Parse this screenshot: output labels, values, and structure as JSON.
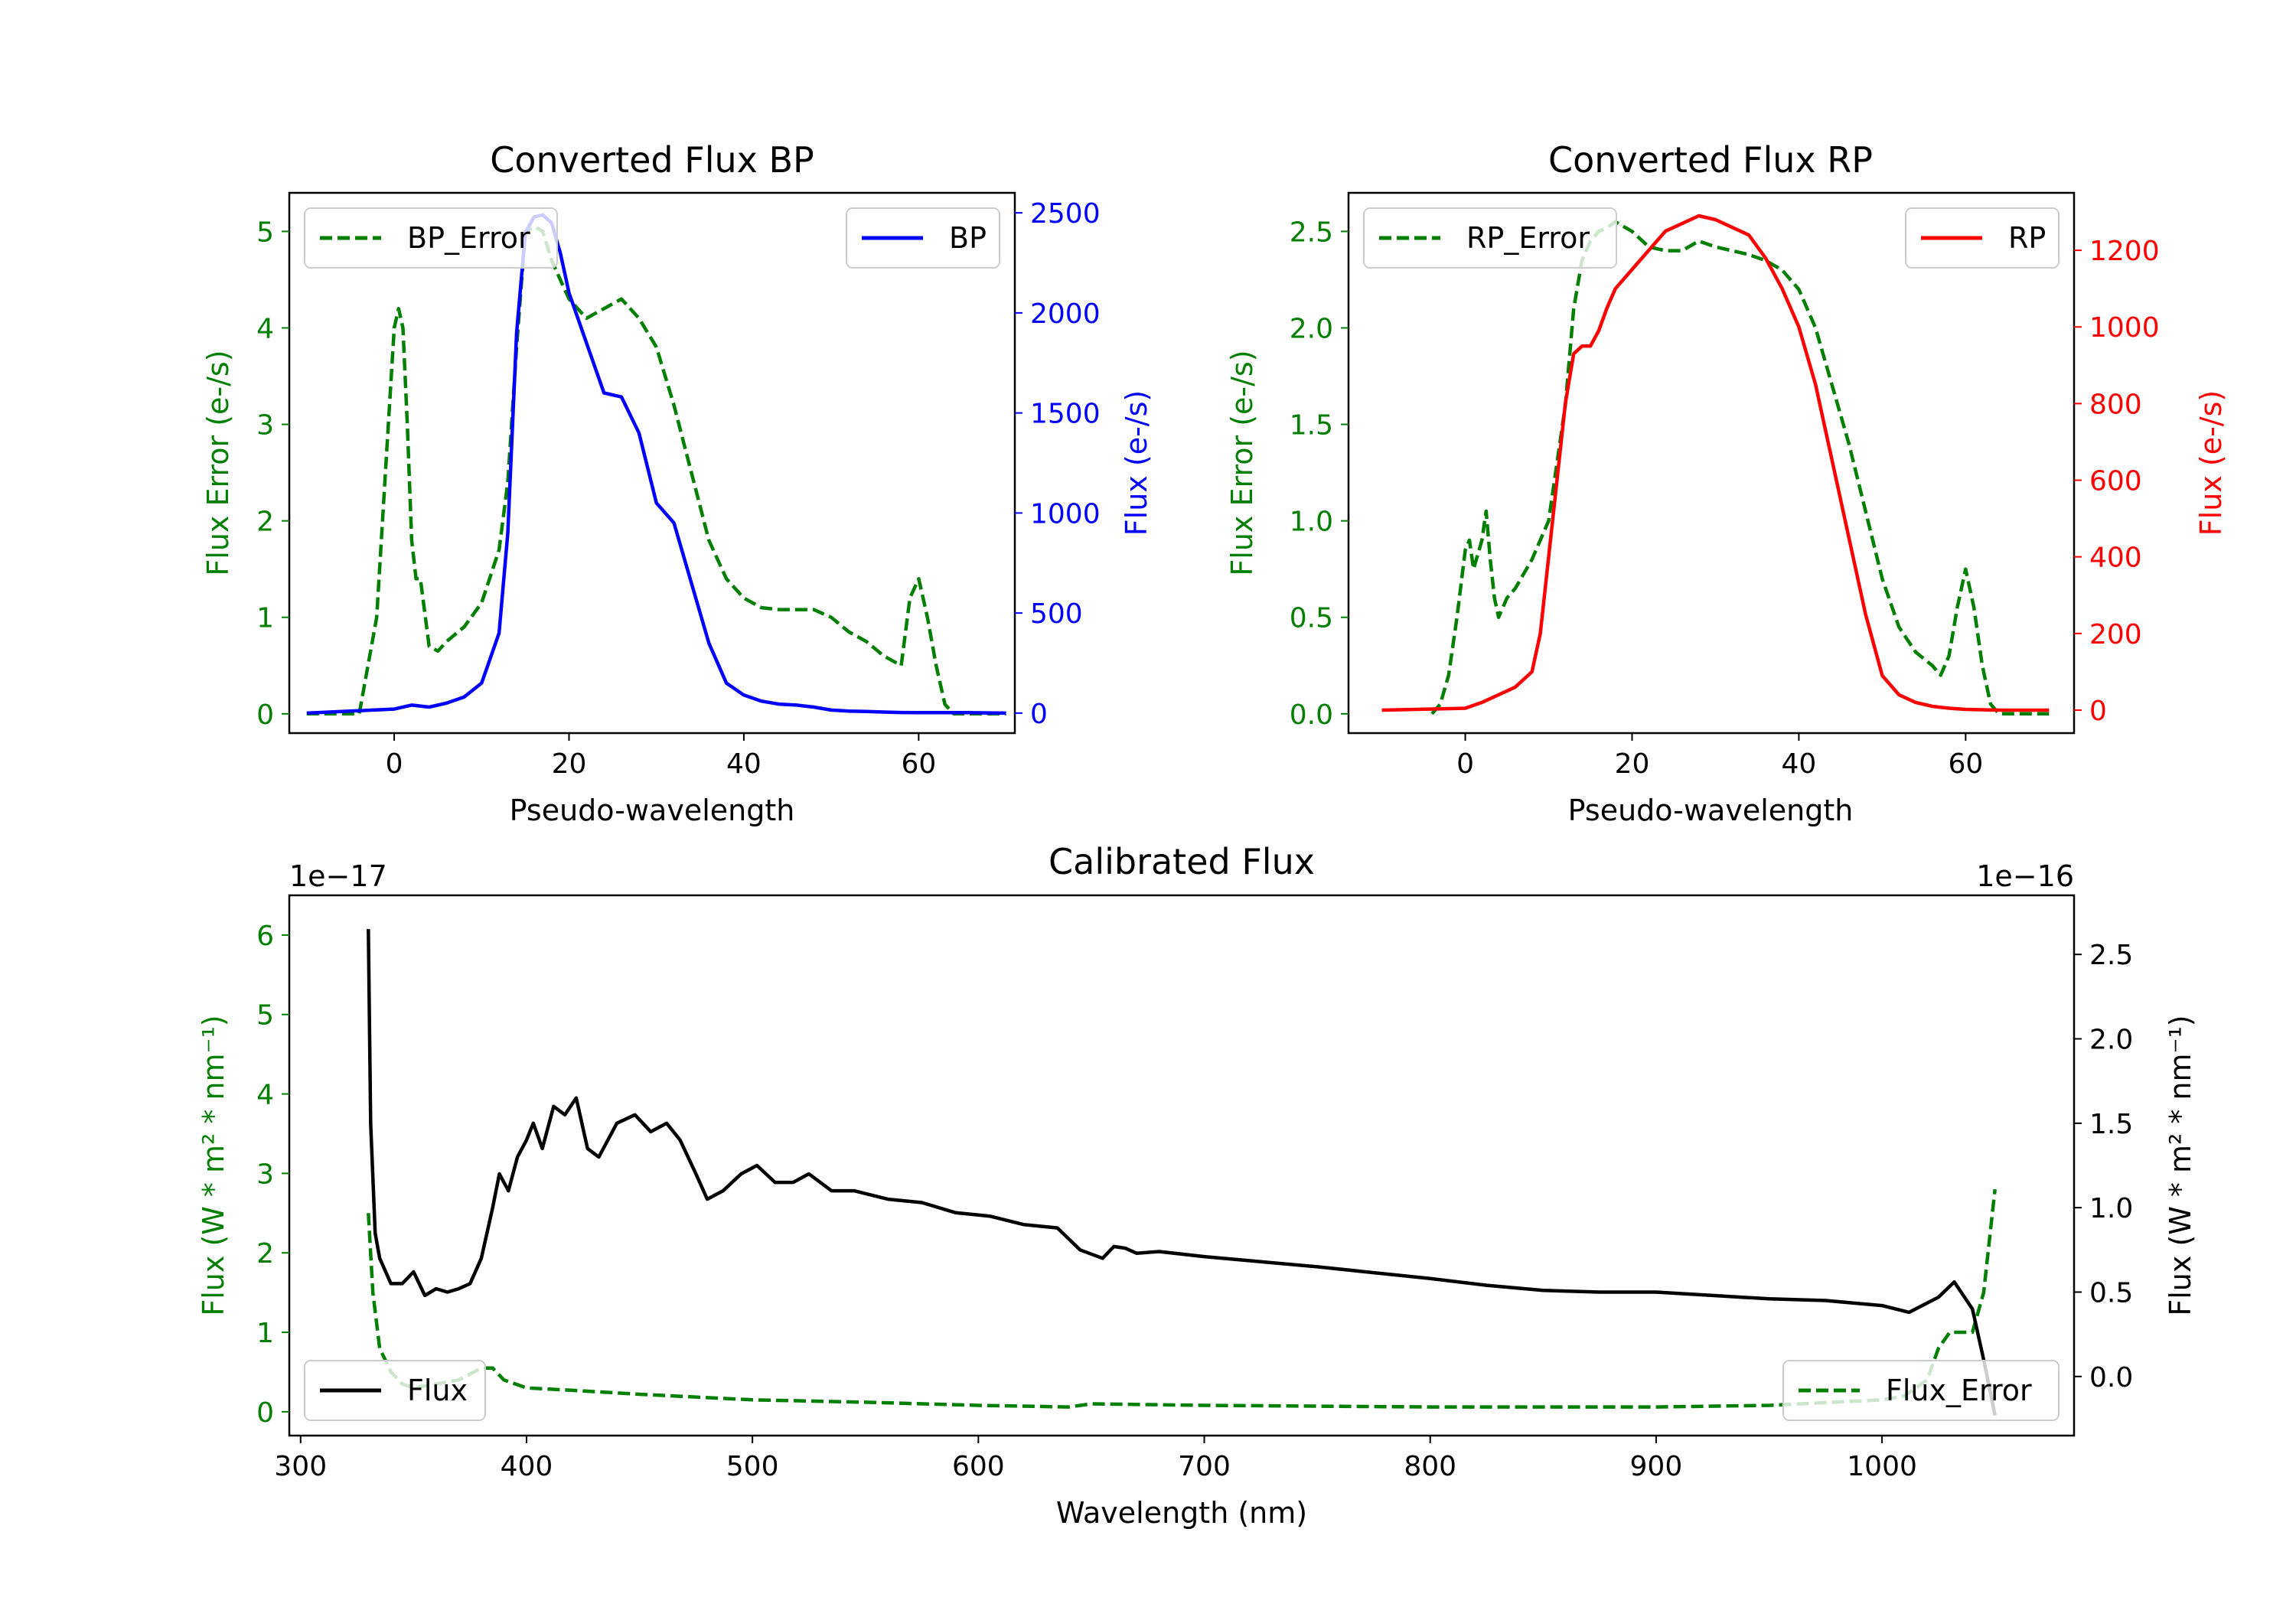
{
  "chart_data": [
    {
      "type": "line",
      "title": "Converted Flux BP",
      "xlabel": "Pseudo-wavelength",
      "ylabel_left": "Flux Error (e-/s)",
      "ylabel_right": "Flux (e-/s)",
      "xlim": [
        -12,
        71
      ],
      "xticks": [
        "0",
        "20",
        "40",
        "60"
      ],
      "xtick_values": [
        0,
        20,
        40,
        60
      ],
      "ylim_left": [
        -0.2,
        5.4
      ],
      "yticks_left": [
        "0",
        "1",
        "2",
        "3",
        "4",
        "5"
      ],
      "ytick_values_left": [
        0,
        1,
        2,
        3,
        4,
        5
      ],
      "ylim_right": [
        -100,
        2600
      ],
      "yticks_right": [
        "0",
        "500",
        "1000",
        "1500",
        "2000",
        "2500"
      ],
      "ytick_values_right": [
        0,
        500,
        1000,
        1500,
        2000,
        2500
      ],
      "legend_left": "BP_Error",
      "legend_right": "BP",
      "legend_placement": "top-left / top-right",
      "colors": {
        "error": "#007f00",
        "flux": "#0000ff",
        "left_axis": "#007f00",
        "right_axis": "#0000ff"
      },
      "series": [
        {
          "name": "BP_Error",
          "axis": "left",
          "style": "dashed",
          "color": "#007f00",
          "x": [
            -10,
            -4,
            -2,
            -1,
            0,
            0.5,
            1,
            1.5,
            2,
            2.5,
            3,
            4,
            5,
            6,
            8,
            10,
            12,
            13,
            14,
            15,
            16,
            17,
            18,
            20,
            22,
            24,
            26,
            28,
            30,
            32,
            34,
            36,
            38,
            40,
            42,
            44,
            46,
            48,
            50,
            52,
            54,
            56,
            58,
            59,
            60,
            61,
            62,
            63,
            64,
            70
          ],
          "values": [
            0,
            0,
            1.0,
            2.5,
            4.0,
            4.2,
            4.0,
            3.0,
            1.8,
            1.4,
            1.4,
            0.7,
            0.65,
            0.75,
            0.9,
            1.15,
            1.7,
            2.4,
            3.8,
            5.0,
            5.05,
            5.0,
            4.7,
            4.3,
            4.1,
            4.2,
            4.3,
            4.1,
            3.8,
            3.2,
            2.5,
            1.8,
            1.4,
            1.2,
            1.1,
            1.08,
            1.08,
            1.08,
            1.0,
            0.85,
            0.75,
            0.6,
            0.5,
            1.2,
            1.4,
            1.0,
            0.5,
            0.1,
            0,
            0
          ]
        },
        {
          "name": "BP",
          "axis": "right",
          "style": "solid",
          "color": "#0000ff",
          "x": [
            -10,
            0,
            2,
            4,
            6,
            8,
            10,
            12,
            13,
            14,
            15,
            16,
            17,
            18,
            19,
            20,
            22,
            24,
            26,
            28,
            30,
            32,
            34,
            36,
            38,
            40,
            42,
            44,
            46,
            48,
            50,
            52,
            54,
            56,
            58,
            60,
            62,
            64,
            66,
            70
          ],
          "values": [
            0,
            20,
            40,
            30,
            50,
            80,
            150,
            400,
            900,
            1900,
            2400,
            2480,
            2490,
            2450,
            2300,
            2100,
            1850,
            1600,
            1580,
            1400,
            1050,
            950,
            650,
            350,
            150,
            90,
            60,
            45,
            40,
            30,
            15,
            10,
            8,
            5,
            3,
            2,
            2,
            2,
            2,
            0
          ]
        }
      ]
    },
    {
      "type": "line",
      "title": "Converted Flux RP",
      "xlabel": "Pseudo-wavelength",
      "ylabel_left": "Flux Error (e-/s)",
      "ylabel_right": "Flux (e-/s)",
      "xlim": [
        -14,
        73
      ],
      "xticks": [
        "0",
        "20",
        "40",
        "60"
      ],
      "xtick_values": [
        0,
        20,
        40,
        60
      ],
      "ylim_left": [
        -0.1,
        2.7
      ],
      "yticks_left": [
        "0.0",
        "0.5",
        "1.0",
        "1.5",
        "2.0",
        "2.5"
      ],
      "ytick_values_left": [
        0,
        0.5,
        1.0,
        1.5,
        2.0,
        2.5
      ],
      "ylim_right": [
        -60,
        1350
      ],
      "yticks_right": [
        "0",
        "200",
        "400",
        "600",
        "800",
        "1000",
        "1200"
      ],
      "ytick_values_right": [
        0,
        200,
        400,
        600,
        800,
        1000,
        1200
      ],
      "legend_left": "RP_Error",
      "legend_right": "RP",
      "legend_placement": "top-left / top-right",
      "colors": {
        "error": "#007f00",
        "flux": "#ff0000",
        "left_axis": "#007f00",
        "right_axis": "#ff0000"
      },
      "series": [
        {
          "name": "RP_Error",
          "axis": "left",
          "style": "dashed",
          "color": "#007f00",
          "x": [
            -4,
            -3,
            -2,
            -1,
            0,
            0.5,
            1,
            2,
            2.5,
            3,
            3.5,
            4,
            5,
            6,
            8,
            10,
            12,
            13,
            14,
            15,
            16,
            17,
            18,
            20,
            22,
            24,
            26,
            28,
            30,
            32,
            34,
            36,
            38,
            40,
            42,
            44,
            46,
            48,
            50,
            52,
            54,
            56,
            57,
            58,
            59,
            60,
            61,
            62,
            63,
            64,
            70
          ],
          "values": [
            0,
            0.05,
            0.2,
            0.5,
            0.85,
            0.9,
            0.75,
            0.9,
            1.05,
            0.8,
            0.6,
            0.5,
            0.6,
            0.65,
            0.8,
            1.0,
            1.6,
            2.1,
            2.35,
            2.45,
            2.5,
            2.52,
            2.55,
            2.5,
            2.42,
            2.4,
            2.4,
            2.45,
            2.42,
            2.4,
            2.38,
            2.35,
            2.3,
            2.2,
            2.0,
            1.7,
            1.4,
            1.05,
            0.7,
            0.45,
            0.32,
            0.25,
            0.2,
            0.3,
            0.55,
            0.75,
            0.55,
            0.25,
            0.05,
            0,
            0
          ]
        },
        {
          "name": "RP",
          "axis": "right",
          "style": "solid",
          "color": "#ff0000",
          "x": [
            -10,
            0,
            2,
            4,
            6,
            8,
            9,
            10,
            11,
            12,
            13,
            14,
            15,
            16,
            17,
            18,
            20,
            22,
            24,
            26,
            28,
            30,
            32,
            34,
            36,
            38,
            40,
            42,
            44,
            46,
            48,
            50,
            52,
            54,
            56,
            58,
            60,
            64,
            70
          ],
          "values": [
            0,
            5,
            20,
            40,
            60,
            100,
            200,
            400,
            600,
            800,
            930,
            950,
            950,
            990,
            1050,
            1100,
            1150,
            1200,
            1250,
            1270,
            1290,
            1280,
            1260,
            1240,
            1180,
            1100,
            1000,
            850,
            650,
            450,
            250,
            90,
            40,
            20,
            10,
            5,
            2,
            0,
            0
          ]
        }
      ]
    },
    {
      "type": "line",
      "title": "Calibrated Flux",
      "xlabel": "Wavelength (nm)",
      "ylabel_left": "Flux (W * m² * nm⁻¹)",
      "ylabel_right": "Flux (W * m² * nm⁻¹)",
      "left_scale_label": "1e−17",
      "right_scale_label": "1e−16",
      "xlim": [
        295,
        1085
      ],
      "xticks": [
        "300",
        "400",
        "500",
        "600",
        "700",
        "800",
        "900",
        "1000"
      ],
      "xtick_values": [
        300,
        400,
        500,
        600,
        700,
        800,
        900,
        1000
      ],
      "ylim_left": [
        -0.3,
        6.5
      ],
      "yticks_left": [
        "0",
        "1",
        "2",
        "3",
        "4",
        "5",
        "6"
      ],
      "ytick_values_left": [
        0,
        1,
        2,
        3,
        4,
        5,
        6
      ],
      "ylim_right": [
        -0.35,
        2.85
      ],
      "yticks_right": [
        "0.0",
        "0.5",
        "1.0",
        "1.5",
        "2.0",
        "2.5"
      ],
      "ytick_values_right": [
        0,
        0.5,
        1.0,
        1.5,
        2.0,
        2.5
      ],
      "legend_left": "Flux",
      "legend_right": "Flux_Error",
      "legend_placement": "bottom-left / bottom-right",
      "colors": {
        "flux": "#000000",
        "error": "#007f00",
        "left_axis": "#007f00",
        "right_axis": "#000000"
      },
      "series": [
        {
          "name": "Flux_Error",
          "axis": "left",
          "style": "dashed",
          "color": "#007f00",
          "x": [
            330,
            332,
            335,
            340,
            345,
            350,
            360,
            370,
            380,
            385,
            390,
            400,
            420,
            450,
            500,
            550,
            600,
            640,
            650,
            700,
            800,
            900,
            950,
            1000,
            1010,
            1020,
            1025,
            1030,
            1035,
            1040,
            1045,
            1050
          ],
          "values": [
            2.5,
            1.5,
            0.8,
            0.5,
            0.35,
            0.3,
            0.35,
            0.4,
            0.55,
            0.55,
            0.4,
            0.3,
            0.27,
            0.22,
            0.15,
            0.12,
            0.08,
            0.06,
            0.1,
            0.08,
            0.06,
            0.06,
            0.08,
            0.15,
            0.2,
            0.4,
            0.8,
            1.0,
            1.0,
            1.0,
            1.5,
            2.8
          ]
        },
        {
          "name": "Flux",
          "axis": "right",
          "style": "solid",
          "color": "#000000",
          "x": [
            330,
            331,
            333,
            335,
            340,
            345,
            350,
            355,
            360,
            365,
            370,
            375,
            380,
            385,
            388,
            392,
            396,
            400,
            403,
            407,
            412,
            417,
            422,
            427,
            432,
            440,
            448,
            455,
            462,
            468,
            475,
            480,
            487,
            495,
            502,
            510,
            518,
            525,
            535,
            545,
            560,
            575,
            590,
            605,
            620,
            635,
            645,
            655,
            660,
            665,
            670,
            680,
            700,
            725,
            750,
            800,
            825,
            850,
            875,
            900,
            925,
            950,
            975,
            1000,
            1012,
            1025,
            1032,
            1040,
            1045,
            1050
          ],
          "values": [
            2.65,
            1.5,
            0.85,
            0.7,
            0.55,
            0.55,
            0.62,
            0.48,
            0.52,
            0.5,
            0.52,
            0.55,
            0.7,
            1.0,
            1.2,
            1.1,
            1.3,
            1.4,
            1.5,
            1.35,
            1.6,
            1.55,
            1.65,
            1.35,
            1.3,
            1.5,
            1.55,
            1.45,
            1.5,
            1.4,
            1.2,
            1.05,
            1.1,
            1.2,
            1.25,
            1.15,
            1.15,
            1.2,
            1.1,
            1.1,
            1.05,
            1.03,
            0.97,
            0.95,
            0.9,
            0.88,
            0.75,
            0.7,
            0.77,
            0.76,
            0.73,
            0.74,
            0.71,
            0.68,
            0.65,
            0.58,
            0.54,
            0.51,
            0.5,
            0.5,
            0.48,
            0.46,
            0.45,
            0.42,
            0.38,
            0.47,
            0.56,
            0.4,
            0.1,
            -0.23
          ]
        }
      ]
    }
  ]
}
